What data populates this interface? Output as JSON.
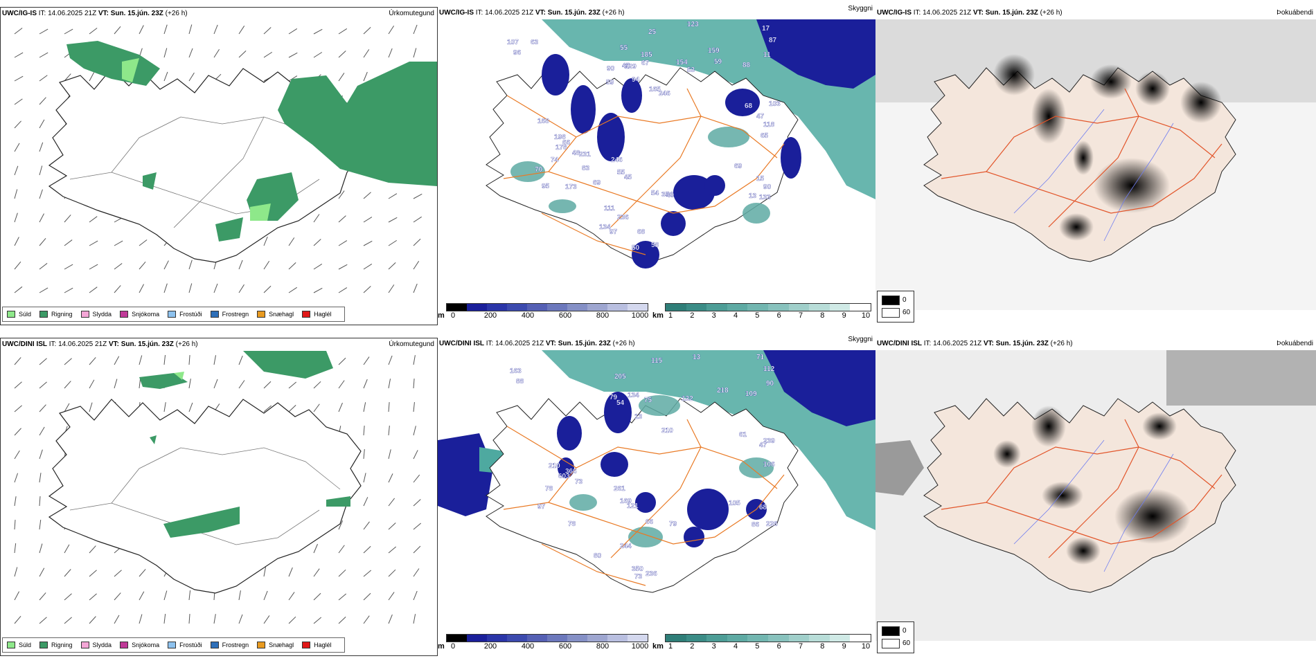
{
  "colors": {
    "sea_cyan": "#4ea9a0",
    "sea_cyan_light": "#7cc4bc",
    "precip_green": "#3c9a66",
    "drizzle_green": "#8ee88a",
    "cloud_navy": "#1a1f9a",
    "road_orange": "#e97a25",
    "land_beige": "#f4e6dc",
    "river_blue": "#6f7df0"
  },
  "rows": [
    {
      "model": "UWC/IG-IS",
      "it_label": "IT:",
      "it_value": "14.06.2025 21Z",
      "vt_label": "VT:",
      "vt_value": "Sun. 15.jún. 23Z",
      "lead": "(+26 h)",
      "precip_title": "Úrkomutegund",
      "cloud_title": "Skyggni",
      "fog_title": "Þokuábendi",
      "cloud_labels": [
        "123",
        "154",
        "185",
        "165",
        "168",
        "83",
        "111",
        "69",
        "97",
        "159",
        "63",
        "59",
        "118",
        "231",
        "354",
        "95",
        "133",
        "87",
        "107",
        "90",
        "103",
        "178",
        "45",
        "58",
        "90",
        "25",
        "53",
        "129",
        "246",
        "198",
        "246",
        "236",
        "69",
        "50",
        "59",
        "55",
        "94",
        "65",
        "74",
        "40",
        "173",
        "134",
        "11",
        "96",
        "45",
        "47",
        "48",
        "54",
        "70",
        "13",
        "17",
        "88",
        "67",
        "68",
        "66",
        "55",
        "68",
        "15"
      ]
    },
    {
      "model": "UWC/DINI ISL",
      "it_label": "IT:",
      "it_value": "14.06.2025 21Z",
      "vt_label": "VT:",
      "vt_value": "Sun. 15.jún. 23Z",
      "lead": "(+26 h)",
      "precip_title": "Úrkomutegund",
      "cloud_title": "Skyggni",
      "fog_title": "Þokuábendi",
      "cloud_labels": [
        "112",
        "163",
        "79",
        "239",
        "603",
        "121",
        "236",
        "226",
        "115",
        "132",
        "134",
        "210",
        "210",
        "261",
        "244",
        "105",
        "73",
        "218",
        "205",
        "13",
        "106",
        "78",
        "79",
        "78",
        "80",
        "90",
        "88",
        "54",
        "47",
        "73",
        "66",
        "97",
        "86",
        "71",
        "109",
        "75",
        "61",
        "366",
        "169",
        "350",
        "68",
        "13"
      ]
    }
  ],
  "legend_precip": [
    {
      "label": "Súld",
      "color": "#8ee88a"
    },
    {
      "label": "Rigning",
      "color": "#3c9a66"
    },
    {
      "label": "Slydda",
      "color": "#f4a6d6"
    },
    {
      "label": "Snjókoma",
      "color": "#c03a98"
    },
    {
      "label": "Frostúði",
      "color": "#8ec2ee"
    },
    {
      "label": "Frostregn",
      "color": "#2e6fb8"
    },
    {
      "label": "Snæhagl",
      "color": "#e89a20"
    },
    {
      "label": "Haglél",
      "color": "#e01818"
    }
  ],
  "cloud_base_bar": {
    "unit": "m",
    "ticks": [
      "0",
      "200",
      "400",
      "600",
      "800",
      "1000"
    ],
    "colors": [
      "#000000",
      "#1a1f9a",
      "#2a35a8",
      "#3c4aae",
      "#5560b4",
      "#6c78bc",
      "#8590c6",
      "#9ea6d0",
      "#b9bfe0",
      "#d4d8ee"
    ]
  },
  "visibility_bar": {
    "unit": "km",
    "ticks": [
      "1",
      "2",
      "3",
      "4",
      "5",
      "6",
      "7",
      "8",
      "9",
      "10"
    ],
    "colors": [
      "#2f7e78",
      "#3b8c86",
      "#4d9d96",
      "#5eaaa3",
      "#72b6b0",
      "#88c2bd",
      "#a0cfca",
      "#b8ddd8",
      "#d0eae6",
      "#ffffff"
    ]
  },
  "fog_legend": [
    {
      "label": "0",
      "color": "#000000"
    },
    {
      "label": "60",
      "color": "#ffffff"
    }
  ]
}
